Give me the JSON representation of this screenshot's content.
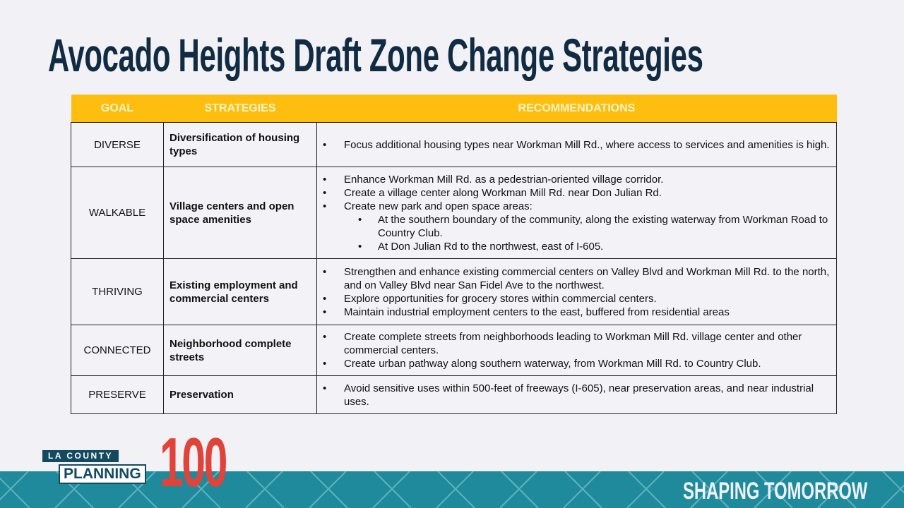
{
  "title": "Avocado Heights Draft Zone Change Strategies",
  "table": {
    "headers": [
      "GOAL",
      "STRATEGIES",
      "RECOMMENDATIONS"
    ],
    "rows": [
      {
        "goal": "DIVERSE",
        "strategy": "Diversification of housing types",
        "items": [
          {
            "text": "Focus additional housing types near Workman Mill Rd., where access to services and amenities is high."
          }
        ]
      },
      {
        "goal": "WALKABLE",
        "strategy": "Village centers and open space amenities",
        "items": [
          {
            "text": "Enhance Workman Mill Rd. as a pedestrian-oriented village corridor."
          },
          {
            "text": "Create a village center along Workman Mill Rd. near Don Julian Rd."
          },
          {
            "text": "Create new park and open space areas:"
          },
          {
            "text": "At the southern boundary of the community, along the existing waterway from Workman Road to Country Club.",
            "sub": true
          },
          {
            "text": "At Don Julian Rd to the northwest, east of I-605.",
            "sub": true
          }
        ]
      },
      {
        "goal": "THRIVING",
        "strategy": "Existing employment and commercial centers",
        "items": [
          {
            "text": "Strengthen and enhance existing commercial centers on Valley Blvd and Workman Mill Rd. to the north, and on Valley Blvd near San Fidel Ave to the northwest."
          },
          {
            "text": "Explore opportunities for grocery stores within commercial centers."
          },
          {
            "text": "Maintain industrial employment centers to the east, buffered from residential areas"
          }
        ]
      },
      {
        "goal": "CONNECTED",
        "strategy": "Neighborhood complete streets",
        "items": [
          {
            "text": "Create complete streets from neighborhoods leading to Workman Mill Rd. village center and other commercial centers."
          },
          {
            "text": "Create urban pathway along southern waterway, from Workman Mill Rd. to Country Club."
          }
        ]
      },
      {
        "goal": "PRESERVE",
        "strategy": "Preservation",
        "items": [
          {
            "text": "Avoid sensitive uses within 500-feet of freeways (I-605), near preservation areas, and near industrial uses."
          }
        ]
      }
    ]
  },
  "logo": {
    "line1": "LA COUNTY",
    "line2": "PLANNING",
    "number": "100"
  },
  "tagline": "SHAPING TOMORROW",
  "colors": {
    "header": "#fdbe10",
    "title": "#102b42",
    "band": "#1f8a9b",
    "logo_red": "#e0433a"
  }
}
